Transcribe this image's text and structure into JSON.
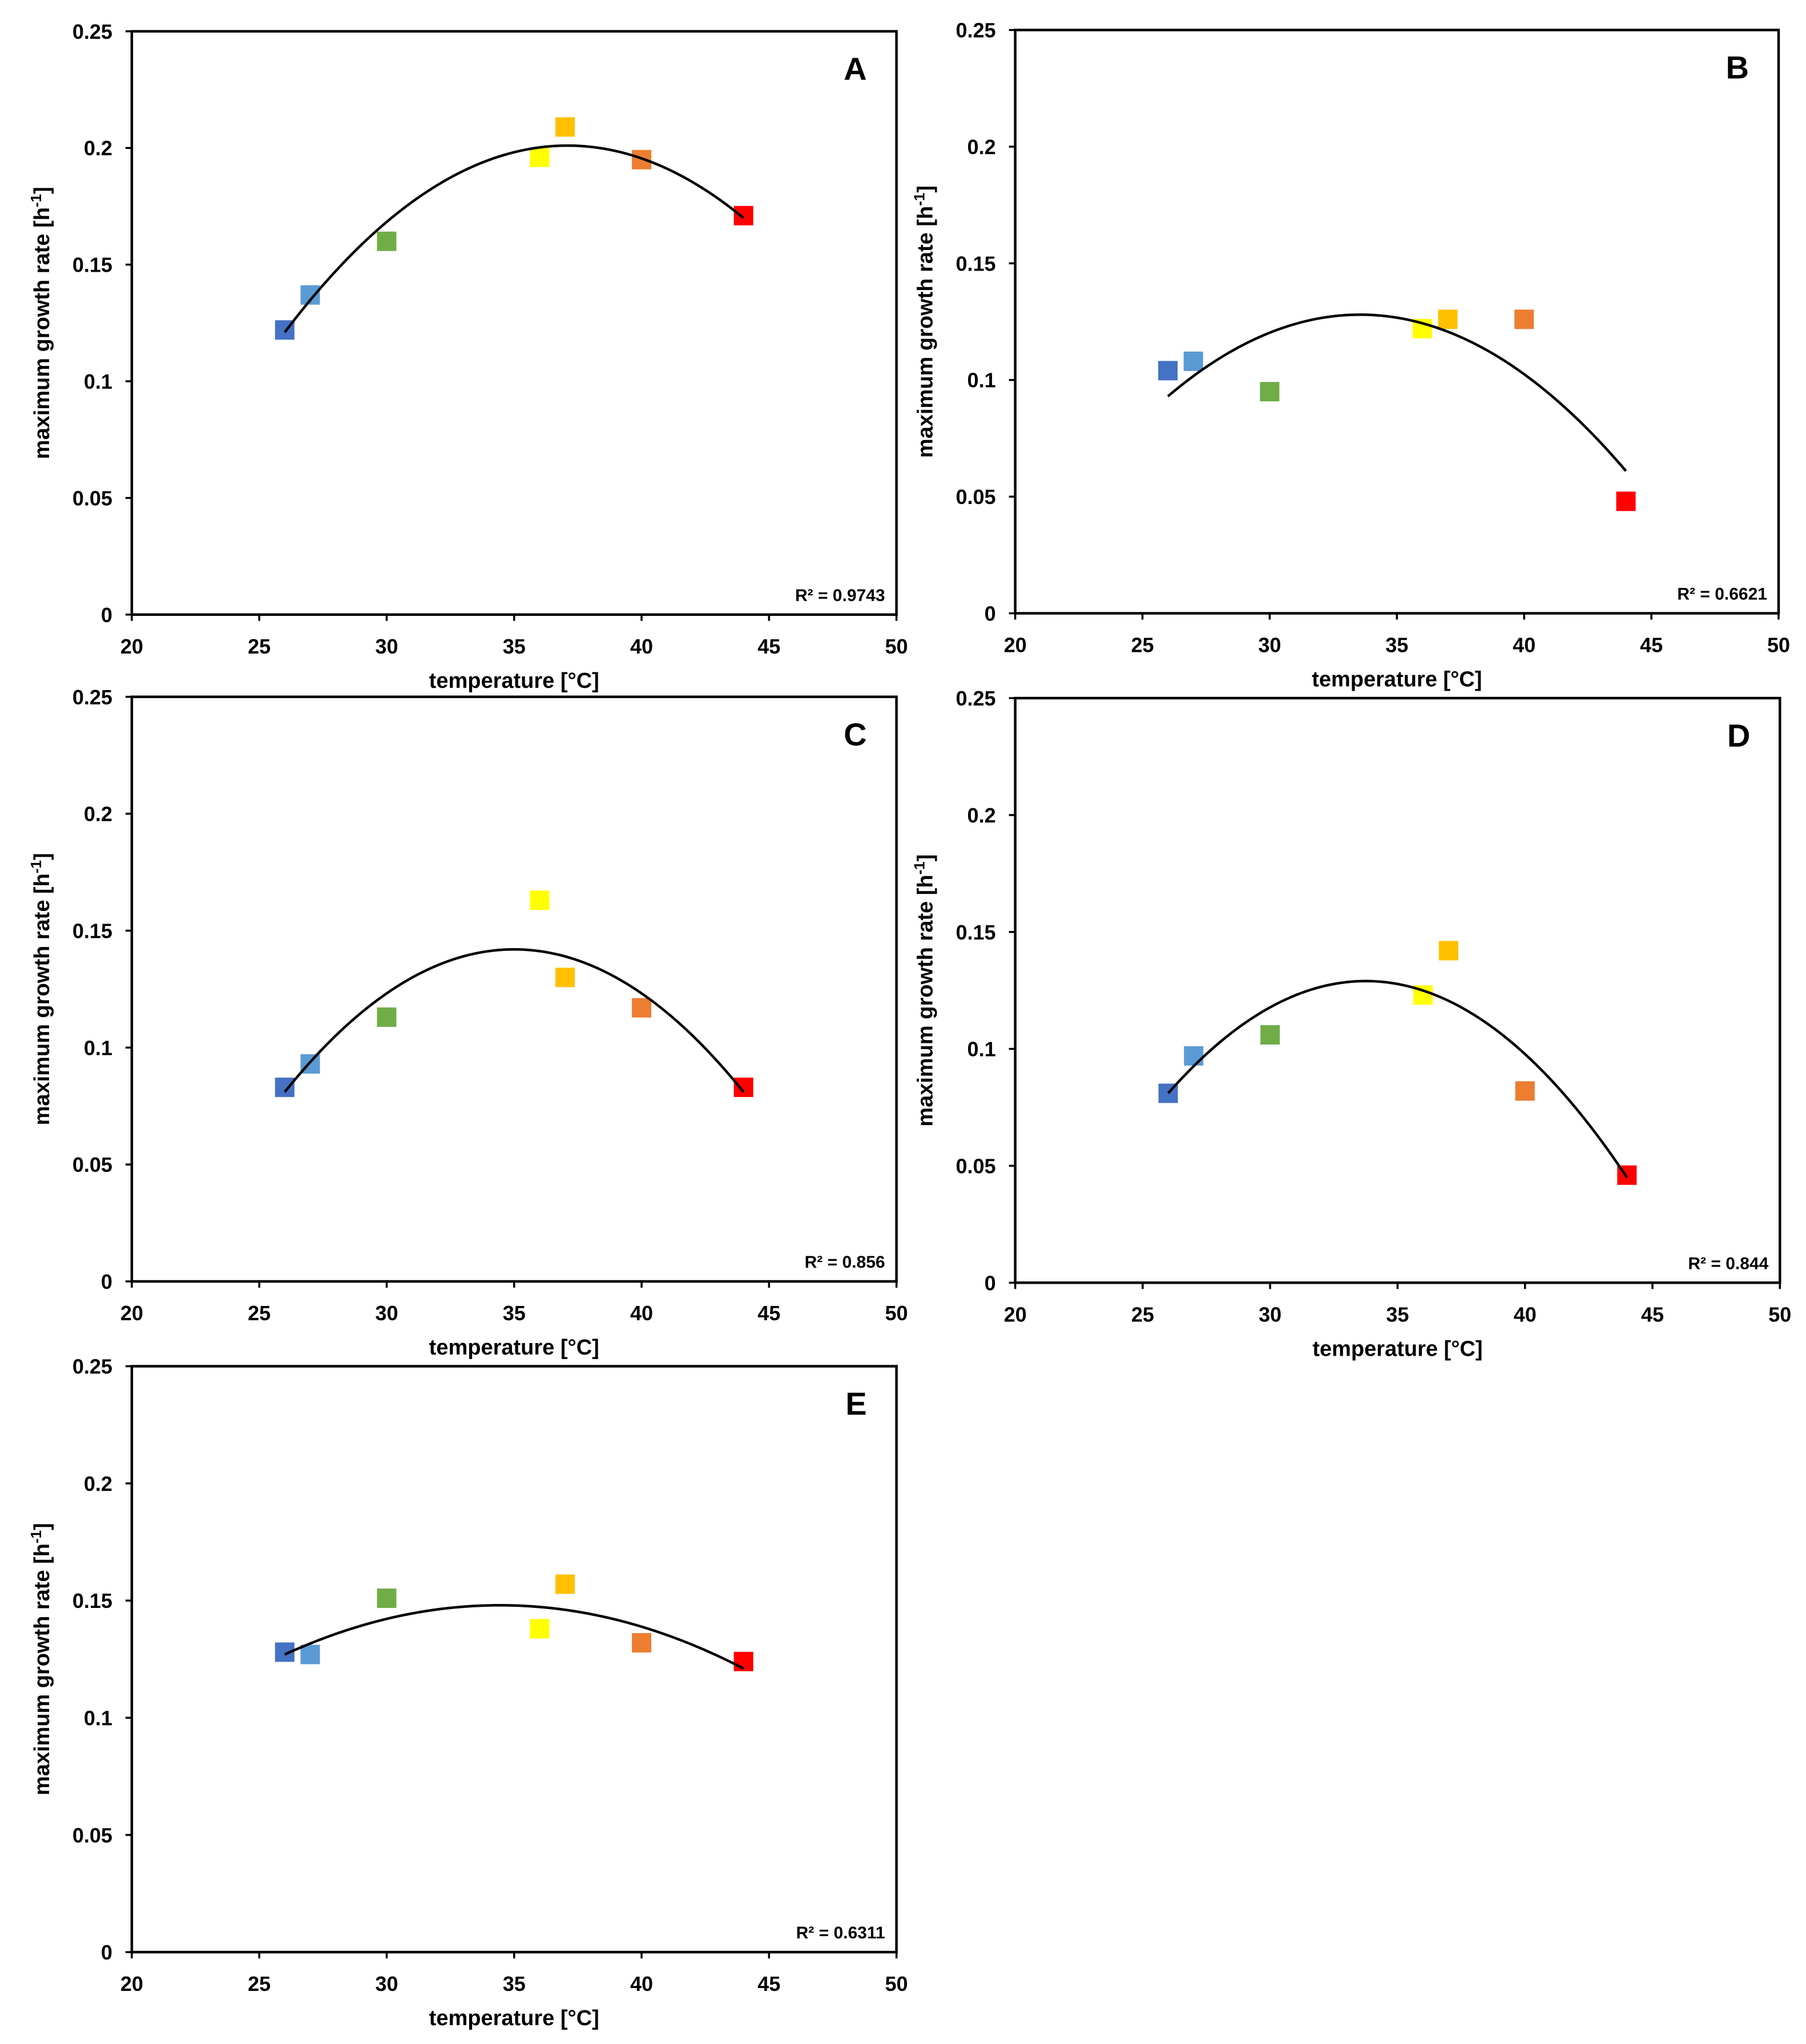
{
  "figure": {
    "x_tick_labels": [
      "20",
      "25",
      "30",
      "35",
      "40",
      "45",
      "50"
    ],
    "y_tick_labels": [
      "0",
      "0.05",
      "0.1",
      "0.15",
      "0.2",
      "0.25"
    ]
  },
  "chart_data": [
    {
      "type": "scatter",
      "panel": "A",
      "title": "A",
      "xlabel": "temperature [°C]",
      "ylabel_main": "maximum growth rate [h",
      "ylabel_sup": "-1",
      "ylabel_end": "]",
      "xlim": [
        20,
        50
      ],
      "ylim": [
        0,
        0.25
      ],
      "r_squared": "R² = 0.9743",
      "point_colors": [
        "#4472c4",
        "#5b9bd5",
        "#70ad47",
        "#ffff00",
        "#ffc000",
        "#ed7d31",
        "#ff0000"
      ],
      "x": [
        26,
        27,
        30,
        36,
        37,
        40,
        44
      ],
      "y": [
        0.122,
        0.137,
        0.16,
        0.196,
        0.209,
        0.195,
        0.171
      ],
      "trendline": {
        "type": "polynomial",
        "order": 2,
        "x_range": [
          26,
          44
        ],
        "points": [
          [
            26,
            0.121
          ],
          [
            37.3,
            0.201
          ],
          [
            44,
            0.17
          ]
        ]
      }
    },
    {
      "type": "scatter",
      "panel": "B",
      "title": "B",
      "xlabel": "temperature [°C]",
      "ylabel_main": "maximum growth rate [h",
      "ylabel_sup": "-1",
      "ylabel_end": "]",
      "xlim": [
        20,
        50
      ],
      "ylim": [
        0,
        0.25
      ],
      "r_squared": "R² = 0.6621",
      "point_colors": [
        "#4472c4",
        "#5b9bd5",
        "#70ad47",
        "#ffff00",
        "#ffc000",
        "#ed7d31",
        "#ff0000"
      ],
      "x": [
        26,
        27,
        30,
        36,
        37,
        40,
        44
      ],
      "y": [
        0.104,
        0.108,
        0.095,
        0.122,
        0.126,
        0.126,
        0.048
      ],
      "trendline": {
        "type": "polynomial",
        "order": 2,
        "x_range": [
          26,
          44
        ],
        "points": [
          [
            26,
            0.093
          ],
          [
            33.5,
            0.128
          ],
          [
            44,
            0.061
          ]
        ]
      }
    },
    {
      "type": "scatter",
      "panel": "C",
      "title": "C",
      "xlabel": "temperature [°C]",
      "ylabel_main": "maximum growth rate [h",
      "ylabel_sup": "-1",
      "ylabel_end": "]",
      "xlim": [
        20,
        50
      ],
      "ylim": [
        0,
        0.25
      ],
      "r_squared": "R² = 0.856",
      "point_colors": [
        "#4472c4",
        "#5b9bd5",
        "#70ad47",
        "#ffff00",
        "#ffc000",
        "#ed7d31",
        "#ff0000"
      ],
      "x": [
        26,
        27,
        30,
        36,
        37,
        40,
        44
      ],
      "y": [
        0.083,
        0.093,
        0.113,
        0.163,
        0.13,
        0.117,
        0.083
      ],
      "trendline": {
        "type": "polynomial",
        "order": 2,
        "x_range": [
          26,
          44
        ],
        "points": [
          [
            26,
            0.081
          ],
          [
            35,
            0.142
          ],
          [
            44,
            0.081
          ]
        ]
      }
    },
    {
      "type": "scatter",
      "panel": "D",
      "title": "D",
      "xlabel": "temperature [°C]",
      "ylabel_main": "maximum growth rate [h",
      "ylabel_sup": "-1",
      "ylabel_end": "]",
      "xlim": [
        20,
        50
      ],
      "ylim": [
        0,
        0.25
      ],
      "r_squared": "R² = 0.844",
      "point_colors": [
        "#4472c4",
        "#5b9bd5",
        "#70ad47",
        "#ffff00",
        "#ffc000",
        "#ed7d31",
        "#ff0000"
      ],
      "x": [
        26,
        27,
        30,
        36,
        37,
        40,
        44
      ],
      "y": [
        0.081,
        0.097,
        0.106,
        0.123,
        0.142,
        0.082,
        0.046
      ],
      "trendline": {
        "type": "polynomial",
        "order": 2,
        "x_range": [
          26,
          44
        ],
        "points": [
          [
            26,
            0.081
          ],
          [
            33.8,
            0.129
          ],
          [
            44,
            0.045
          ]
        ]
      }
    },
    {
      "type": "scatter",
      "panel": "E",
      "title": "E",
      "xlabel": "temperature [°C]",
      "ylabel_main": "maximum growth rate [h",
      "ylabel_sup": "-1",
      "ylabel_end": "]",
      "xlim": [
        20,
        50
      ],
      "ylim": [
        0,
        0.25
      ],
      "r_squared": "R² = 0.6311",
      "point_colors": [
        "#4472c4",
        "#5b9bd5",
        "#70ad47",
        "#ffff00",
        "#ffc000",
        "#ed7d31",
        "#ff0000"
      ],
      "x": [
        26,
        27,
        30,
        36,
        37,
        40,
        44
      ],
      "y": [
        0.128,
        0.127,
        0.151,
        0.138,
        0.157,
        0.132,
        0.124
      ],
      "trendline": {
        "type": "polynomial",
        "order": 2,
        "x_range": [
          26,
          44
        ],
        "points": [
          [
            26,
            0.127
          ],
          [
            34.3,
            0.148
          ],
          [
            44,
            0.121
          ]
        ]
      }
    }
  ]
}
